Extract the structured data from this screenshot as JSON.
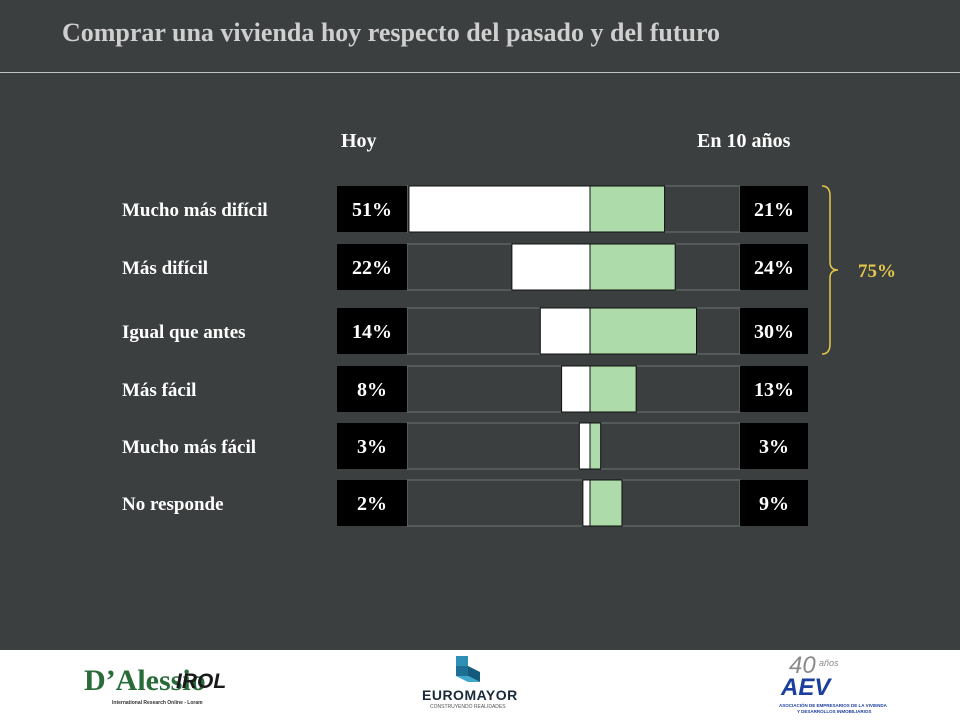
{
  "title": "Comprar una vivienda hoy respecto del pasado y del futuro",
  "chart_data": {
    "type": "bar",
    "layout": "diverging",
    "categories": [
      "Mucho más difícil",
      "Más difícil",
      "Igual que antes",
      "Más fácil",
      "Mucho más fácil",
      "No responde"
    ],
    "series": [
      {
        "name": "Hoy",
        "values": [
          51,
          22,
          14,
          8,
          3,
          2
        ],
        "labels": [
          "51%",
          "22%",
          "14%",
          "8%",
          "3%",
          "2%"
        ]
      },
      {
        "name": "En 10 años",
        "values": [
          21,
          24,
          30,
          13,
          3,
          9
        ],
        "labels": [
          "21%",
          "24%",
          "30%",
          "13%",
          "3%",
          "9%"
        ]
      }
    ],
    "annotation": {
      "text": "75%",
      "spans": [
        "Mucho más difícil",
        "Más difícil",
        "Igual que antes"
      ]
    },
    "colors": {
      "hoy": "#ffffff",
      "futuro": "#addcaa",
      "accent": "#e6c84a",
      "background": "#3b3f3f",
      "label_box": "#000000"
    }
  },
  "footer": {
    "logos": [
      {
        "name": "D'Alessio IROL",
        "main": "D’Alessio",
        "brand": "IROL",
        "tagline": "International Research Online - Loram"
      },
      {
        "name": "Euromayor",
        "main": "EUROMAYOR",
        "tagline": "CONSTRUYENDO REALIDADES"
      },
      {
        "name": "AEV",
        "badge_number": "40",
        "badge_word": "años",
        "main": "AEV",
        "tagline_1": "ASOCIACIÓN DE EMPRESARIOS DE LA VIVIENDA",
        "tagline_2": "Y DESARROLLOS INMOBILIARIOS"
      }
    ]
  }
}
